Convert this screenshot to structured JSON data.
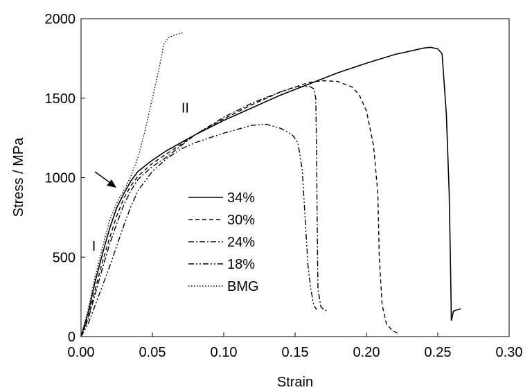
{
  "chart_data": {
    "type": "line",
    "xlabel": "Strain",
    "ylabel": "Stress / MPa",
    "xlim": [
      0.0,
      0.3
    ],
    "ylim": [
      0,
      2000
    ],
    "xticks": [
      "0.00",
      "0.05",
      "0.10",
      "0.15",
      "0.20",
      "0.25",
      "0.30"
    ],
    "yticks": [
      "0",
      "500",
      "1000",
      "1500",
      "2000"
    ],
    "grid": false,
    "legend_position": "center-left",
    "series": [
      {
        "name": "34%",
        "style": "solid",
        "points": [
          [
            0.0,
            0
          ],
          [
            0.005,
            150
          ],
          [
            0.01,
            350
          ],
          [
            0.015,
            520
          ],
          [
            0.02,
            680
          ],
          [
            0.025,
            810
          ],
          [
            0.03,
            900
          ],
          [
            0.035,
            980
          ],
          [
            0.04,
            1040
          ],
          [
            0.05,
            1110
          ],
          [
            0.06,
            1170
          ],
          [
            0.07,
            1220
          ],
          [
            0.08,
            1270
          ],
          [
            0.1,
            1360
          ],
          [
            0.12,
            1440
          ],
          [
            0.14,
            1520
          ],
          [
            0.16,
            1590
          ],
          [
            0.18,
            1660
          ],
          [
            0.2,
            1720
          ],
          [
            0.22,
            1775
          ],
          [
            0.24,
            1815
          ],
          [
            0.245,
            1820
          ],
          [
            0.25,
            1810
          ],
          [
            0.253,
            1780
          ],
          [
            0.256,
            1400
          ],
          [
            0.258,
            900
          ],
          [
            0.259,
            400
          ],
          [
            0.2595,
            100
          ],
          [
            0.261,
            160
          ],
          [
            0.264,
            170
          ],
          [
            0.266,
            175
          ]
        ]
      },
      {
        "name": "30%",
        "style": "dashed",
        "points": [
          [
            0.0,
            0
          ],
          [
            0.005,
            120
          ],
          [
            0.01,
            300
          ],
          [
            0.015,
            470
          ],
          [
            0.02,
            620
          ],
          [
            0.025,
            760
          ],
          [
            0.03,
            870
          ],
          [
            0.035,
            950
          ],
          [
            0.04,
            1010
          ],
          [
            0.05,
            1090
          ],
          [
            0.06,
            1150
          ],
          [
            0.07,
            1210
          ],
          [
            0.08,
            1270
          ],
          [
            0.1,
            1370
          ],
          [
            0.12,
            1460
          ],
          [
            0.14,
            1540
          ],
          [
            0.16,
            1600
          ],
          [
            0.17,
            1610
          ],
          [
            0.18,
            1605
          ],
          [
            0.19,
            1570
          ],
          [
            0.195,
            1520
          ],
          [
            0.2,
            1420
          ],
          [
            0.205,
            1200
          ],
          [
            0.208,
            900
          ],
          [
            0.209,
            500
          ],
          [
            0.211,
            200
          ],
          [
            0.214,
            80
          ],
          [
            0.218,
            40
          ],
          [
            0.222,
            20
          ]
        ]
      },
      {
        "name": "24%",
        "style": "dashdot",
        "points": [
          [
            0.0,
            0
          ],
          [
            0.005,
            110
          ],
          [
            0.01,
            270
          ],
          [
            0.015,
            430
          ],
          [
            0.02,
            580
          ],
          [
            0.025,
            710
          ],
          [
            0.03,
            830
          ],
          [
            0.035,
            920
          ],
          [
            0.04,
            990
          ],
          [
            0.05,
            1070
          ],
          [
            0.06,
            1130
          ],
          [
            0.07,
            1200
          ],
          [
            0.08,
            1270
          ],
          [
            0.1,
            1380
          ],
          [
            0.12,
            1470
          ],
          [
            0.14,
            1540
          ],
          [
            0.15,
            1570
          ],
          [
            0.16,
            1575
          ],
          [
            0.163,
            1560
          ],
          [
            0.1645,
            1500
          ],
          [
            0.165,
            1200
          ],
          [
            0.1655,
            700
          ],
          [
            0.166,
            300
          ],
          [
            0.168,
            190
          ],
          [
            0.17,
            170
          ],
          [
            0.173,
            160
          ]
        ]
      },
      {
        "name": "18%",
        "style": "dashdotdot",
        "points": [
          [
            0.0,
            0
          ],
          [
            0.005,
            80
          ],
          [
            0.01,
            200
          ],
          [
            0.015,
            320
          ],
          [
            0.02,
            440
          ],
          [
            0.025,
            570
          ],
          [
            0.03,
            700
          ],
          [
            0.035,
            820
          ],
          [
            0.04,
            920
          ],
          [
            0.05,
            1040
          ],
          [
            0.06,
            1120
          ],
          [
            0.07,
            1180
          ],
          [
            0.08,
            1220
          ],
          [
            0.1,
            1280
          ],
          [
            0.12,
            1330
          ],
          [
            0.13,
            1335
          ],
          [
            0.14,
            1310
          ],
          [
            0.148,
            1270
          ],
          [
            0.152,
            1220
          ],
          [
            0.155,
            1050
          ],
          [
            0.157,
            750
          ],
          [
            0.159,
            450
          ],
          [
            0.161,
            300
          ],
          [
            0.163,
            200
          ],
          [
            0.165,
            170
          ]
        ]
      },
      {
        "name": "BMG",
        "style": "dotted",
        "points": [
          [
            0.0,
            0
          ],
          [
            0.005,
            170
          ],
          [
            0.01,
            380
          ],
          [
            0.015,
            560
          ],
          [
            0.02,
            730
          ],
          [
            0.025,
            840
          ],
          [
            0.03,
            920
          ],
          [
            0.035,
            1010
          ],
          [
            0.04,
            1130
          ],
          [
            0.045,
            1300
          ],
          [
            0.05,
            1500
          ],
          [
            0.055,
            1700
          ],
          [
            0.058,
            1840
          ],
          [
            0.061,
            1880
          ],
          [
            0.065,
            1895
          ],
          [
            0.068,
            1905
          ],
          [
            0.071,
            1910
          ],
          [
            0.072,
            1905
          ]
        ]
      }
    ],
    "annotations": [
      {
        "text": "I",
        "x": 0.009,
        "y": 540
      },
      {
        "text": "II",
        "x": 0.073,
        "y": 1410
      }
    ]
  }
}
